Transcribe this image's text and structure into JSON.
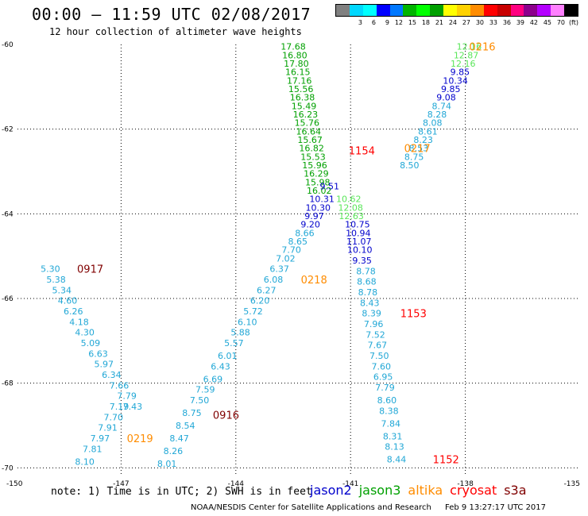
{
  "title": "00:00 – 11:59 UTC 02/08/2017",
  "subtitle": "12 hour collection of altimeter wave heights",
  "colorbar": {
    "labels": [
      "",
      "3",
      "6",
      "9",
      "12",
      "15",
      "18",
      "21",
      "24",
      "27",
      "30",
      "33",
      "36",
      "39",
      "42",
      "45",
      "70",
      "(ft)"
    ],
    "colors": [
      "#808080",
      "#00d8ff",
      "#00ffff",
      "#0000ff",
      "#0078ff",
      "#00b400",
      "#00ff00",
      "#00a000",
      "#ffff00",
      "#ffd200",
      "#ff8c00",
      "#ff0000",
      "#c80000",
      "#ff0080",
      "#8c008c",
      "#b400ff",
      "#ff80ff",
      "#000000"
    ]
  },
  "note": "note: 1) Time is in UTC; 2) SWH is in feet",
  "legend": [
    {
      "name": "jason2",
      "color": "#0000cc"
    },
    {
      "name": "jason3",
      "color": "#00a000"
    },
    {
      "name": "altika",
      "color": "#ff8c00"
    },
    {
      "name": "cryosat",
      "color": "#ff0000"
    },
    {
      "name": "s3a",
      "color": "#800000"
    }
  ],
  "footer": {
    "center": "NOAA/NESDIS Center for Satellite Applications and Research",
    "timestamp": "Feb  9 13:27:17 UTC 2017"
  },
  "chart_data": {
    "type": "scatter",
    "xlim": [
      -150,
      -135
    ],
    "ylim": [
      -70.2,
      -60
    ],
    "x_ticks": [
      -150,
      -147,
      -144,
      -141,
      -138,
      -135
    ],
    "x_tick_labels": [
      "-150",
      "-147",
      "-144",
      "-141",
      "-138",
      "-135"
    ],
    "y_ticks": [
      -60,
      -62,
      -64,
      -66,
      -68,
      -70
    ],
    "y_tick_labels": [
      "-60",
      "-62",
      "-64",
      "-66",
      "-68",
      "-70"
    ],
    "grid": true,
    "series": [
      {
        "color": "#00a000",
        "points": [
          [
            -142.5,
            -60.05,
            "17.68"
          ],
          [
            -142.46,
            -60.25,
            "16.80"
          ],
          [
            -142.42,
            -60.45,
            "17.80"
          ],
          [
            -142.38,
            -60.65,
            "16.15"
          ],
          [
            -142.34,
            -60.85,
            "17.16"
          ],
          [
            -142.3,
            -61.05,
            "15.56"
          ],
          [
            -142.26,
            -61.25,
            "16.38"
          ],
          [
            -142.22,
            -61.45,
            "15.49"
          ],
          [
            -142.18,
            -61.65,
            "16.23"
          ],
          [
            -142.14,
            -61.85,
            "15.76"
          ],
          [
            -142.1,
            -62.05,
            "16.64"
          ],
          [
            -142.06,
            -62.25,
            "15.67"
          ],
          [
            -142.02,
            -62.45,
            "16.82"
          ],
          [
            -141.98,
            -62.65,
            "15.53"
          ],
          [
            -141.94,
            -62.85,
            "15.96"
          ],
          [
            -141.9,
            -63.05,
            "16.29"
          ],
          [
            -141.86,
            -63.25,
            "15.98"
          ],
          [
            -141.82,
            -63.45,
            "16.02"
          ]
        ]
      },
      {
        "color": "#5ae65a",
        "points": [
          [
            -137.9,
            -60.05,
            "12.16"
          ],
          [
            -137.98,
            -60.25,
            "12.87"
          ],
          [
            -138.06,
            -60.45,
            "12.16"
          ],
          [
            -141.0,
            -63.85,
            "12.08"
          ],
          [
            -140.98,
            -64.05,
            "12.63"
          ],
          [
            -141.05,
            -63.65,
            "10.62"
          ]
        ]
      },
      {
        "color": "#0000cc",
        "points": [
          [
            -138.14,
            -60.65,
            "9.85"
          ],
          [
            -138.26,
            -60.85,
            "10.34"
          ],
          [
            -138.38,
            -61.05,
            "9.85"
          ],
          [
            -138.5,
            -61.25,
            "9.08"
          ],
          [
            -141.55,
            -63.35,
            "9.51"
          ],
          [
            -141.75,
            -63.65,
            "10.31"
          ],
          [
            -141.85,
            -63.85,
            "10.30"
          ],
          [
            -141.95,
            -64.05,
            "9.97"
          ],
          [
            -142.05,
            -64.25,
            "9.20"
          ],
          [
            -140.82,
            -64.25,
            "10.75"
          ],
          [
            -140.8,
            -64.45,
            "10.94"
          ],
          [
            -140.78,
            -64.65,
            "11.07"
          ],
          [
            -140.76,
            -64.85,
            "10.10"
          ],
          [
            -140.7,
            -65.1,
            "9.35"
          ]
        ]
      },
      {
        "color": "#21a7d6",
        "points": [
          [
            -138.62,
            -61.45,
            "8.74"
          ],
          [
            -138.74,
            -61.65,
            "8.28"
          ],
          [
            -138.86,
            -61.85,
            "8.08"
          ],
          [
            -138.98,
            -62.05,
            "8.61"
          ],
          [
            -139.1,
            -62.25,
            "8.23"
          ],
          [
            -139.22,
            -62.45,
            "8.53"
          ],
          [
            -139.34,
            -62.65,
            "8.75"
          ],
          [
            -139.46,
            -62.85,
            "8.50"
          ],
          [
            -142.2,
            -64.45,
            "8.66"
          ],
          [
            -142.38,
            -64.65,
            "8.65"
          ],
          [
            -142.55,
            -64.85,
            "7.70"
          ],
          [
            -142.7,
            -65.05,
            "7.02"
          ],
          [
            -142.86,
            -65.3,
            "6.37"
          ],
          [
            -143.02,
            -65.55,
            "6.08"
          ],
          [
            -143.2,
            -65.8,
            "6.27"
          ],
          [
            -143.37,
            -66.05,
            "6.20"
          ],
          [
            -143.55,
            -66.3,
            "5.72"
          ],
          [
            -143.7,
            -66.55,
            "6.10"
          ],
          [
            -143.88,
            -66.8,
            "5.88"
          ],
          [
            -144.05,
            -67.05,
            "5.57"
          ],
          [
            -144.22,
            -67.35,
            "6.01"
          ],
          [
            -144.4,
            -67.6,
            "6.43"
          ],
          [
            -144.6,
            -67.9,
            "6.69"
          ],
          [
            -144.8,
            -68.15,
            "7.59"
          ],
          [
            -144.95,
            -68.4,
            "7.50"
          ],
          [
            -145.15,
            -68.7,
            "8.75"
          ],
          [
            -145.32,
            -69.0,
            "8.54"
          ],
          [
            -145.48,
            -69.3,
            "8.47"
          ],
          [
            -145.64,
            -69.6,
            "8.26"
          ],
          [
            -145.8,
            -69.9,
            "8.01"
          ],
          [
            -148.85,
            -65.3,
            "5.30"
          ],
          [
            -148.7,
            -65.55,
            "5.38"
          ],
          [
            -148.55,
            -65.8,
            "5.34"
          ],
          [
            -148.4,
            -66.05,
            "4.60"
          ],
          [
            -148.25,
            -66.3,
            "6.26"
          ],
          [
            -148.1,
            -66.55,
            "4.18"
          ],
          [
            -147.95,
            -66.8,
            "4.30"
          ],
          [
            -147.8,
            -67.05,
            "5.09"
          ],
          [
            -147.6,
            -67.3,
            "6.63"
          ],
          [
            -147.45,
            -67.55,
            "5.97"
          ],
          [
            -147.25,
            -67.8,
            "6.34"
          ],
          [
            -147.05,
            -68.05,
            "7.66"
          ],
          [
            -146.85,
            -68.3,
            "7.79"
          ],
          [
            -147.05,
            -68.55,
            "7.19"
          ],
          [
            -146.7,
            -68.55,
            "7.43"
          ],
          [
            -147.2,
            -68.8,
            "7.70"
          ],
          [
            -147.35,
            -69.05,
            "7.91"
          ],
          [
            -147.55,
            -69.3,
            "7.97"
          ],
          [
            -147.75,
            -69.55,
            "7.81"
          ],
          [
            -147.95,
            -69.85,
            "8.10"
          ],
          [
            -140.6,
            -65.35,
            "8.78"
          ],
          [
            -140.58,
            -65.6,
            "8.68"
          ],
          [
            -140.55,
            -65.85,
            "8.78"
          ],
          [
            -140.5,
            -66.1,
            "8.43"
          ],
          [
            -140.45,
            -66.35,
            "8.39"
          ],
          [
            -140.4,
            -66.6,
            "7.96"
          ],
          [
            -140.35,
            -66.85,
            "7.52"
          ],
          [
            -140.3,
            -67.1,
            "7.67"
          ],
          [
            -140.25,
            -67.35,
            "7.50"
          ],
          [
            -140.2,
            -67.6,
            "7.60"
          ],
          [
            -140.15,
            -67.85,
            "6.95"
          ],
          [
            -140.1,
            -68.1,
            "7.79"
          ],
          [
            -140.05,
            -68.4,
            "8.60"
          ],
          [
            -140.0,
            -68.65,
            "8.38"
          ],
          [
            -139.95,
            -68.95,
            "7.84"
          ],
          [
            -139.9,
            -69.25,
            "8.31"
          ],
          [
            -139.85,
            -69.5,
            "8.13"
          ],
          [
            -139.8,
            -69.8,
            "8.44"
          ]
        ]
      }
    ],
    "time_labels": [
      {
        "x": -137.9,
        "y": -60.05,
        "text": "0216",
        "color": "#ff8c00"
      },
      {
        "x": -139.6,
        "y": -62.45,
        "text": "0217",
        "color": "#ff8c00"
      },
      {
        "x": -142.3,
        "y": -65.55,
        "text": "0218",
        "color": "#ff8c00"
      },
      {
        "x": -146.85,
        "y": -69.3,
        "text": "0219",
        "color": "#ff8c00"
      },
      {
        "x": -141.05,
        "y": -62.5,
        "text": "1154",
        "color": "#ff0000"
      },
      {
        "x": -139.7,
        "y": -66.35,
        "text": "1153",
        "color": "#ff0000"
      },
      {
        "x": -138.85,
        "y": -69.8,
        "text": "1152",
        "color": "#ff0000"
      },
      {
        "x": -148.15,
        "y": -65.3,
        "text": "0917",
        "color": "#800000"
      },
      {
        "x": -144.6,
        "y": -68.75,
        "text": "0916",
        "color": "#800000"
      }
    ]
  }
}
